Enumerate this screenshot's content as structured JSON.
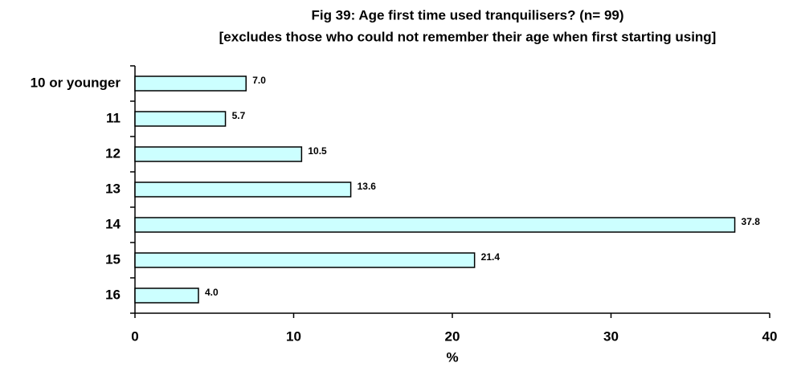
{
  "chart_data": {
    "type": "bar",
    "orientation": "horizontal",
    "title": "Fig 39:   Age first time used tranquilisers?  (n= 99)",
    "subtitle": "[excludes those who could not remember their age when first starting using]",
    "x_label": "%",
    "categories": [
      "10 or younger",
      "11",
      "12",
      "13",
      "14",
      "15",
      "16"
    ],
    "values": [
      7.0,
      5.7,
      10.5,
      13.6,
      37.8,
      21.4,
      4.0
    ],
    "value_labels": [
      "7.0",
      "5.7",
      "10.5",
      "13.6",
      "37.8",
      "21.4",
      "4.0"
    ],
    "color": "#ccffff",
    "xlim": [
      0,
      40
    ],
    "xticks": [
      0,
      10,
      20,
      30,
      40
    ]
  }
}
